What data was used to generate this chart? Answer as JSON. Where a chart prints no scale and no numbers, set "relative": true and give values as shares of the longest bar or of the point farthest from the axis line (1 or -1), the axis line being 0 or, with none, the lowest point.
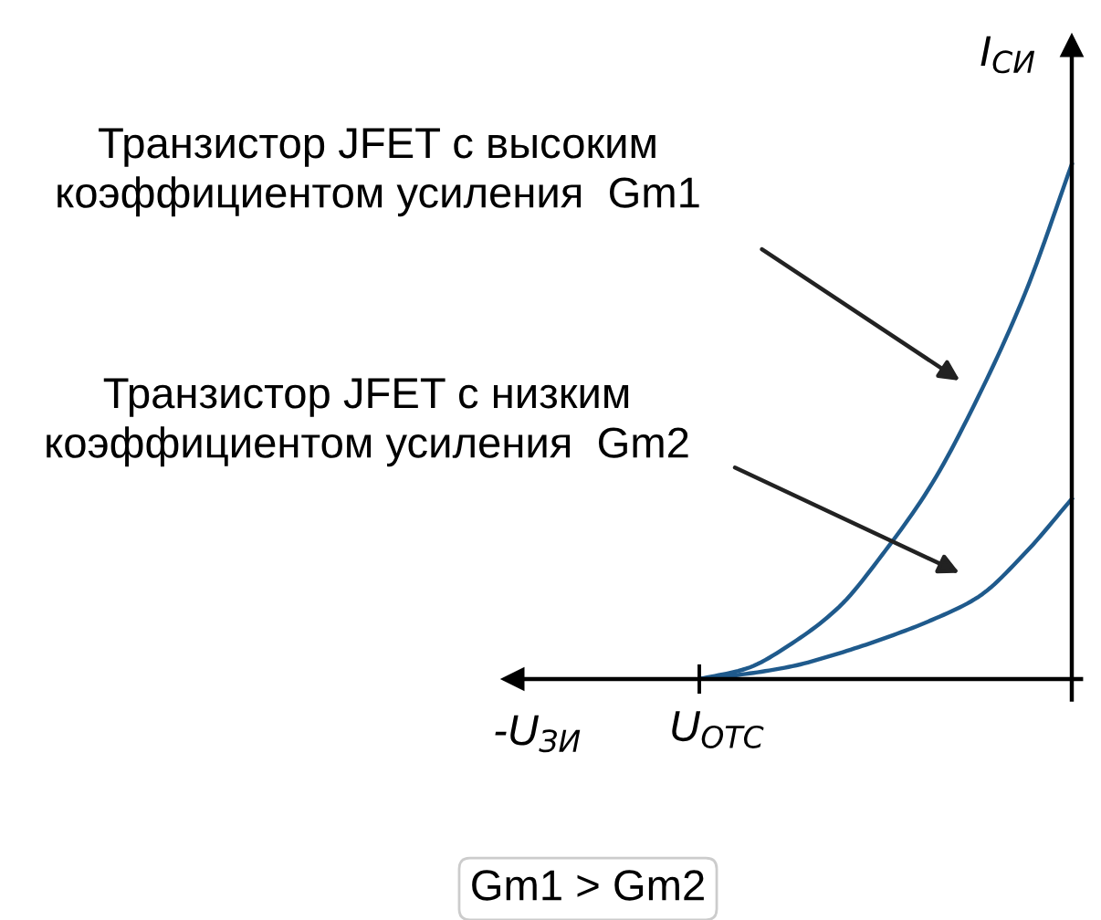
{
  "chart_data": {
    "type": "line",
    "relative": true,
    "xlabel": "-U$_{ЗИ}$",
    "ylabel": "I$_{СИ}$",
    "categories": [
      null,
      null,
      null,
      null,
      null,
      null,
      null,
      null,
      null,
      null,
      null,
      null,
      null
    ],
    "series": [
      {
        "color": "#1f5a8c",
        "values": [
          null,
          null,
          null,
          null,
          0,
          0.02,
          0.07,
          0.14,
          0.25,
          0.38,
          0.55,
          0.75,
          1.0
        ]
      },
      {
        "color": "#1f5a8c",
        "values": [
          null,
          null,
          null,
          null,
          0,
          0.01,
          0.025,
          0.05,
          0.08,
          0.115,
          0.16,
          0.245,
          0.35
        ]
      }
    ],
    "annotations": [
      "Транзистор JFET с высоким\nкоэффициентом усиления  Gm1",
      "Транзистор JFET с низким\nкоэффициентом усиления  Gm2",
      "Gm1 > Gm2",
      "U$_{ОТС}$"
    ],
    "marker": "none",
    "line_style": "solid",
    "grid": false,
    "legend": false
  }
}
